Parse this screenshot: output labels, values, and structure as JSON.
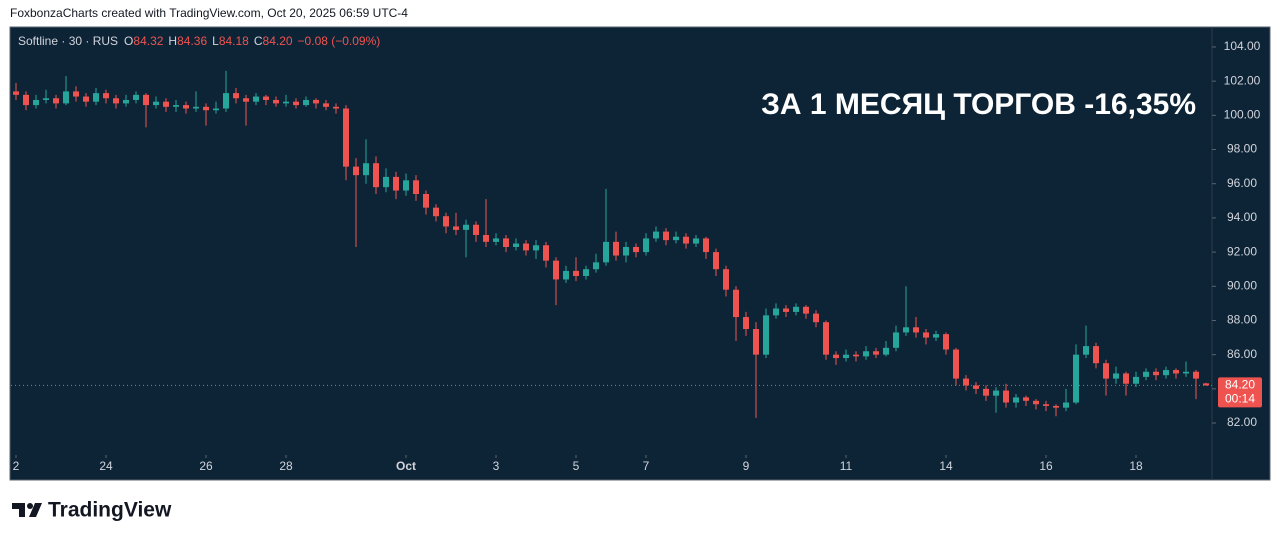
{
  "header": {
    "text": "FoxbonzaCharts created with TradingView.com, Oct 20, 2025 06:59 UTC-4"
  },
  "legend": {
    "symbol": "Softline · 30 · RUS",
    "o_label": "O",
    "open": "84.32",
    "h_label": "H",
    "high": "84.36",
    "l_label": "L",
    "low": "84.18",
    "c_label": "C",
    "close": "84.20",
    "change": "−0.08 (−0.09%)"
  },
  "price_tag": {
    "price": "84.20",
    "countdown": "00:14"
  },
  "footer": {
    "brand": "TradingView"
  },
  "chart_data": {
    "type": "candlestick",
    "annotation": "ЗА 1 МЕСЯЦ ТОРГОВ -16,35%",
    "up_color": "#26a69a",
    "down_color": "#ef5350",
    "ylim": [
      80.13,
      105.11
    ],
    "yticks": [
      {
        "value": 82,
        "label": "82.00"
      },
      {
        "value": 84,
        "label": "84.00"
      },
      {
        "value": 86,
        "label": "86.00"
      },
      {
        "value": 88,
        "label": "88.00"
      },
      {
        "value": 90,
        "label": "90.00"
      },
      {
        "value": 92,
        "label": "92.00"
      },
      {
        "value": 94,
        "label": "94.00"
      },
      {
        "value": 96,
        "label": "96.00"
      },
      {
        "value": 98,
        "label": "98.00"
      },
      {
        "value": 100,
        "label": "100.00"
      },
      {
        "value": 102,
        "label": "102.00"
      },
      {
        "value": 104,
        "label": "104.00"
      }
    ],
    "xlim": [
      0,
      120
    ],
    "xticks": [
      {
        "value": 0,
        "label": "2"
      },
      {
        "value": 9,
        "label": "24"
      },
      {
        "value": 19,
        "label": "26"
      },
      {
        "value": 27,
        "label": "28"
      },
      {
        "value": 39,
        "label": "Oct"
      },
      {
        "value": 48,
        "label": "3"
      },
      {
        "value": 56,
        "label": "5"
      },
      {
        "value": 63,
        "label": "7"
      },
      {
        "value": 73,
        "label": "9"
      },
      {
        "value": 83,
        "label": "11"
      },
      {
        "value": 93,
        "label": "14"
      },
      {
        "value": 103,
        "label": "16"
      },
      {
        "value": 112,
        "label": "18"
      }
    ],
    "open": [
      101.4,
      101.2,
      100.6,
      100.9,
      101.0,
      100.7,
      101.4,
      101.1,
      100.8,
      101.3,
      101.0,
      100.7,
      100.9,
      101.2,
      100.6,
      100.8,
      100.5,
      100.6,
      100.4,
      100.5,
      100.3,
      100.4,
      101.3,
      101.0,
      100.8,
      101.1,
      100.9,
      100.7,
      100.8,
      100.6,
      100.9,
      100.7,
      100.5,
      100.4,
      97.0,
      96.5,
      97.2,
      95.8,
      96.4,
      95.6,
      96.2,
      95.4,
      94.6,
      94.1,
      93.5,
      93.3,
      93.6,
      93.0,
      92.6,
      92.8,
      92.3,
      92.5,
      92.1,
      92.4,
      91.5,
      90.4,
      90.9,
      90.6,
      91.0,
      91.4,
      92.6,
      91.8,
      92.3,
      92.0,
      92.8,
      93.2,
      92.7,
      92.9,
      92.5,
      92.8,
      92.0,
      91.0,
      89.8,
      88.2,
      87.5,
      86.0,
      88.3,
      88.7,
      88.5,
      88.8,
      88.4,
      87.9,
      86.0,
      85.8,
      86.0,
      85.9,
      86.2,
      86.0,
      86.4,
      87.3,
      87.6,
      87.3,
      87.0,
      87.2,
      86.3,
      84.6,
      84.2,
      84.0,
      83.6,
      83.9,
      83.2,
      83.5,
      83.3,
      83.1,
      83.0,
      82.9,
      83.2,
      86.0,
      86.5,
      85.5,
      84.6,
      84.9,
      84.3,
      84.7,
      85.0,
      84.8,
      85.1,
      84.9,
      85.0,
      84.32
    ],
    "high": [
      101.9,
      101.4,
      101.2,
      101.5,
      101.2,
      102.3,
      101.7,
      101.3,
      101.6,
      101.5,
      101.2,
      101.2,
      101.4,
      101.3,
      101.1,
      101.0,
      100.9,
      100.8,
      101.4,
      100.7,
      100.8,
      102.6,
      101.6,
      101.2,
      101.3,
      101.2,
      101.1,
      101.2,
      101.0,
      101.1,
      101.0,
      100.9,
      100.7,
      100.6,
      97.5,
      98.6,
      97.6,
      96.9,
      96.7,
      96.6,
      96.5,
      95.6,
      94.8,
      94.3,
      94.3,
      93.9,
      93.8,
      95.1,
      93.1,
      93.0,
      92.8,
      92.7,
      92.7,
      92.6,
      91.7,
      91.2,
      91.7,
      91.2,
      91.9,
      95.7,
      93.2,
      92.6,
      92.5,
      93.1,
      93.5,
      93.4,
      93.2,
      93.1,
      93.0,
      92.9,
      92.2,
      91.2,
      90.0,
      88.5,
      87.9,
      88.7,
      89.0,
      88.9,
      89.0,
      88.9,
      88.6,
      88.0,
      86.2,
      86.3,
      86.2,
      86.5,
      86.4,
      86.8,
      87.7,
      90.0,
      88.2,
      87.5,
      87.4,
      87.3,
      86.4,
      84.8,
      84.4,
      84.2,
      84.1,
      84.3,
      83.7,
      83.6,
      83.4,
      83.3,
      83.1,
      84.0,
      86.6,
      87.7,
      86.7,
      85.7,
      85.3,
      85.0,
      85.0,
      85.2,
      85.2,
      85.3,
      85.2,
      85.6,
      85.1,
      84.36
    ],
    "low": [
      100.9,
      100.3,
      100.4,
      100.7,
      100.4,
      100.6,
      100.8,
      100.5,
      100.6,
      100.7,
      100.4,
      100.5,
      100.7,
      99.3,
      100.4,
      100.2,
      100.2,
      100.1,
      100.2,
      99.4,
      100.1,
      100.2,
      100.7,
      99.4,
      100.6,
      100.6,
      100.5,
      100.5,
      100.4,
      100.5,
      100.4,
      100.3,
      100.1,
      96.2,
      92.3,
      96.0,
      95.4,
      95.5,
      95.1,
      95.3,
      95.0,
      94.2,
      93.8,
      93.1,
      93.0,
      91.7,
      92.6,
      92.3,
      92.4,
      92.0,
      92.1,
      91.8,
      91.6,
      91.1,
      88.9,
      90.2,
      90.3,
      90.4,
      90.8,
      91.2,
      91.5,
      91.4,
      91.7,
      91.8,
      92.6,
      92.4,
      92.5,
      92.2,
      92.3,
      91.6,
      90.6,
      89.4,
      86.8,
      87.1,
      82.3,
      85.8,
      88.1,
      88.2,
      88.3,
      88.1,
      87.6,
      85.7,
      85.4,
      85.6,
      85.6,
      85.7,
      85.8,
      85.9,
      86.2,
      87.1,
      87.0,
      86.6,
      86.8,
      86.0,
      84.2,
      83.9,
      83.7,
      83.3,
      82.6,
      82.9,
      82.9,
      83.0,
      82.8,
      82.7,
      82.4,
      82.7,
      83.1,
      85.8,
      85.2,
      83.6,
      84.3,
      83.6,
      84.1,
      84.5,
      84.5,
      84.6,
      84.6,
      84.7,
      83.4,
      84.18
    ],
    "close": [
      101.2,
      100.6,
      100.9,
      101.0,
      100.7,
      101.4,
      101.1,
      100.8,
      101.3,
      101.0,
      100.7,
      100.9,
      101.2,
      100.6,
      100.8,
      100.5,
      100.6,
      100.4,
      100.5,
      100.3,
      100.4,
      101.3,
      101.0,
      100.8,
      101.1,
      100.9,
      100.7,
      100.8,
      100.6,
      100.9,
      100.7,
      100.5,
      100.4,
      97.0,
      96.5,
      97.2,
      95.8,
      96.4,
      95.6,
      96.2,
      95.4,
      94.6,
      94.1,
      93.5,
      93.3,
      93.6,
      93.0,
      92.6,
      92.8,
      92.3,
      92.5,
      92.1,
      92.4,
      91.5,
      90.4,
      90.9,
      90.6,
      91.0,
      91.4,
      92.6,
      91.8,
      92.3,
      92.0,
      92.8,
      93.2,
      92.7,
      92.9,
      92.5,
      92.8,
      92.0,
      91.0,
      89.8,
      88.2,
      87.5,
      86.0,
      88.3,
      88.7,
      88.5,
      88.8,
      88.4,
      87.9,
      86.0,
      85.8,
      86.0,
      85.9,
      86.2,
      86.0,
      86.4,
      87.3,
      87.6,
      87.3,
      87.0,
      87.2,
      86.3,
      84.6,
      84.2,
      84.0,
      83.6,
      83.9,
      83.2,
      83.5,
      83.3,
      83.1,
      83.0,
      82.9,
      83.2,
      86.0,
      86.5,
      85.5,
      84.6,
      84.9,
      84.3,
      84.7,
      85.0,
      84.8,
      85.1,
      84.9,
      85.0,
      84.6,
      84.2
    ]
  }
}
